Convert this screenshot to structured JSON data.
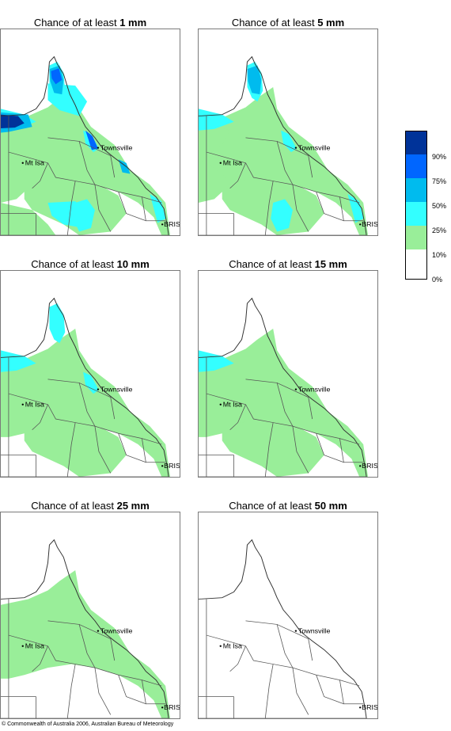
{
  "panels": [
    {
      "prefix": "Chance of at least ",
      "amount": "1 mm",
      "level": 6
    },
    {
      "prefix": "Chance of at least ",
      "amount": "5 mm",
      "level": 5
    },
    {
      "prefix": "Chance of at least ",
      "amount": "10 mm",
      "level": 4
    },
    {
      "prefix": "Chance of at least ",
      "amount": "15 mm",
      "level": 3
    },
    {
      "prefix": "Chance of at least ",
      "amount": "25 mm",
      "level": 2
    },
    {
      "prefix": "Chance of at least ",
      "amount": "50 mm",
      "level": 1
    }
  ],
  "places": {
    "townsville": "Townsville",
    "mt_isa": "Mt Isa",
    "bris": "BRIS"
  },
  "legend": {
    "labels": [
      "90%",
      "75%",
      "50%",
      "25%",
      "10%",
      "0%"
    ],
    "colors": [
      "#003399",
      "#0066ff",
      "#00bbee",
      "#33ffff",
      "#99ee99",
      "#ffffff"
    ]
  },
  "colors": {
    "border": "#7a7a7a",
    "land_line": "#555555"
  },
  "copyright": "© Commonwealth of Australia 2006, Australian Bureau of Meteorology"
}
